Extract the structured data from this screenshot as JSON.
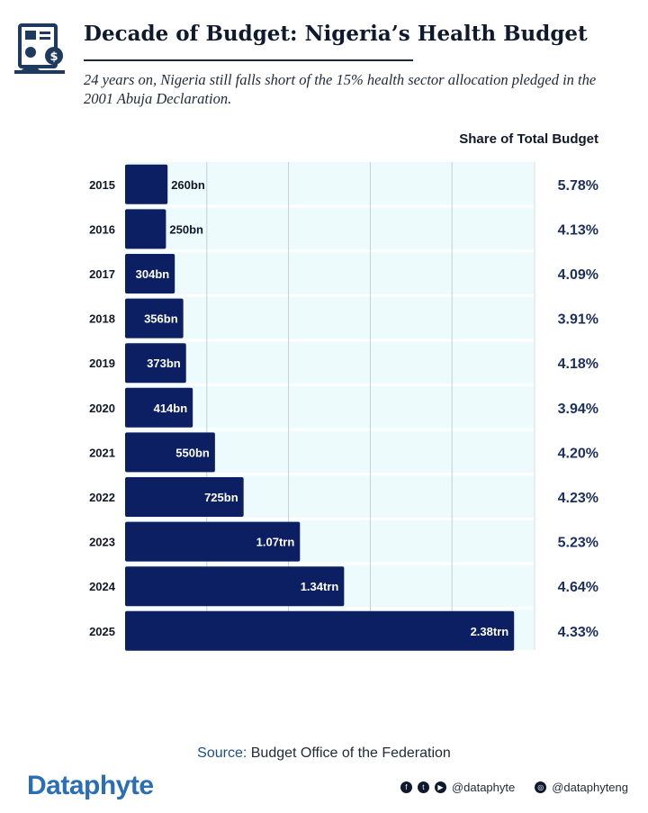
{
  "header": {
    "title": "Decade of Budget: Nigeria’s Health Budget",
    "subtitle": "24 years on, Nigeria still falls short of the 15% health sector allocation pledged in the 2001 Abuja Declaration."
  },
  "colors": {
    "bar": "#0c1f63",
    "plot_background": "#eefbfc",
    "share_text": "#1b2f5e",
    "brand": "#2a6fb5"
  },
  "chart_data": {
    "type": "bar",
    "orientation": "horizontal",
    "title": "Decade of Budget: Nigeria’s Health Budget",
    "xlabel": "",
    "ylabel": "",
    "unit": "billion naira",
    "xlim": [
      0,
      2500
    ],
    "grid": true,
    "categories": [
      "2015",
      "2016",
      "2017",
      "2018",
      "2019",
      "2020",
      "2021",
      "2022",
      "2023",
      "2024",
      "2025"
    ],
    "values": [
      260,
      250,
      304,
      356,
      373,
      414,
      550,
      725,
      1070,
      1340,
      2380
    ],
    "data_labels": [
      "260bn",
      "250bn",
      "304bn",
      "356bn",
      "373bn",
      "414bn",
      "550bn",
      "725bn",
      "1.07trn",
      "1.34trn",
      "2.38trn"
    ],
    "share_column": {
      "heading": "Share of Total Budget",
      "values": [
        "5.78%",
        "4.13%",
        "4.09%",
        "3.91%",
        "4.18%",
        "3.94%",
        "4.20%",
        "4.23%",
        "5.23%",
        "4.64%",
        "4.33%"
      ]
    }
  },
  "footer": {
    "source_label": "Source:",
    "source_text": "Budget Office of the Federation",
    "brand": "Dataphyte",
    "social_handle_1": "@dataphyte",
    "social_handle_2": "@dataphyteng"
  }
}
